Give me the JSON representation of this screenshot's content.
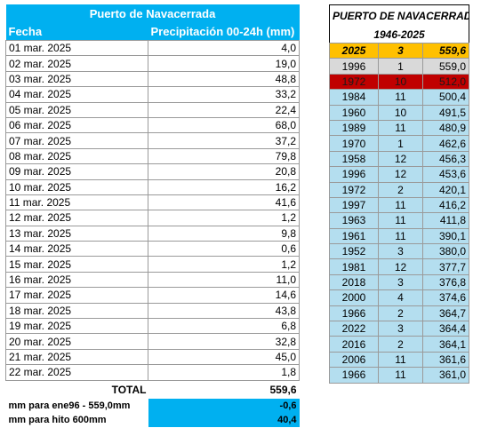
{
  "left": {
    "title": "Puerto de Navacerrada",
    "header": {
      "date": "Fecha",
      "precip": "Precipitación 00-24h (mm)"
    },
    "rows": [
      {
        "date": "01 mar. 2025",
        "value": "4,0"
      },
      {
        "date": "02 mar. 2025",
        "value": "19,0"
      },
      {
        "date": "03 mar. 2025",
        "value": "48,8"
      },
      {
        "date": "04 mar. 2025",
        "value": "33,2"
      },
      {
        "date": "05 mar. 2025",
        "value": "22,4"
      },
      {
        "date": "06 mar. 2025",
        "value": "68,0"
      },
      {
        "date": "07 mar. 2025",
        "value": "37,2"
      },
      {
        "date": "08 mar. 2025",
        "value": "79,8"
      },
      {
        "date": "09 mar. 2025",
        "value": "20,8"
      },
      {
        "date": "10 mar. 2025",
        "value": "16,2"
      },
      {
        "date": "11 mar. 2025",
        "value": "41,6"
      },
      {
        "date": "12 mar. 2025",
        "value": "1,2"
      },
      {
        "date": "13 mar. 2025",
        "value": "9,8"
      },
      {
        "date": "14 mar. 2025",
        "value": "0,6"
      },
      {
        "date": "15 mar. 2025",
        "value": "1,2"
      },
      {
        "date": "16 mar. 2025",
        "value": "11,0"
      },
      {
        "date": "17 mar. 2025",
        "value": "14,6"
      },
      {
        "date": "18 mar. 2025",
        "value": "43,8"
      },
      {
        "date": "19 mar. 2025",
        "value": "6,8"
      },
      {
        "date": "20 mar. 2025",
        "value": "32,8"
      },
      {
        "date": "21 mar. 2025",
        "value": "45,0"
      },
      {
        "date": "22 mar. 2025",
        "value": "1,8"
      }
    ],
    "total": {
      "label": "TOTAL",
      "value": "559,6"
    },
    "summary": [
      {
        "label": "mm para ene96 - 559,0mm",
        "value": "-0,6"
      },
      {
        "label": "mm para hito 600mm",
        "value": "40,4"
      }
    ]
  },
  "right": {
    "title": "PUERTO DE NAVACERRADA",
    "subtitle": "1946-2025",
    "current": {
      "year": "2025",
      "month": "3",
      "value": "559,6"
    },
    "rows": [
      {
        "year": "1996",
        "month": "1",
        "value": "559,0",
        "style": "grey"
      },
      {
        "year": "1972",
        "month": "10",
        "value": "512,0",
        "style": "red"
      },
      {
        "year": "1984",
        "month": "11",
        "value": "500,4",
        "style": ""
      },
      {
        "year": "1960",
        "month": "10",
        "value": "491,5",
        "style": ""
      },
      {
        "year": "1989",
        "month": "11",
        "value": "480,9",
        "style": ""
      },
      {
        "year": "1970",
        "month": "1",
        "value": "462,6",
        "style": ""
      },
      {
        "year": "1958",
        "month": "12",
        "value": "456,3",
        "style": ""
      },
      {
        "year": "1996",
        "month": "12",
        "value": "453,6",
        "style": ""
      },
      {
        "year": "1972",
        "month": "2",
        "value": "420,1",
        "style": ""
      },
      {
        "year": "1997",
        "month": "11",
        "value": "416,2",
        "style": ""
      },
      {
        "year": "1963",
        "month": "11",
        "value": "411,8",
        "style": ""
      },
      {
        "year": "1961",
        "month": "11",
        "value": "390,1",
        "style": ""
      },
      {
        "year": "1952",
        "month": "3",
        "value": "380,0",
        "style": ""
      },
      {
        "year": "1981",
        "month": "12",
        "value": "377,7",
        "style": ""
      },
      {
        "year": "2018",
        "month": "3",
        "value": "376,8",
        "style": ""
      },
      {
        "year": "2000",
        "month": "4",
        "value": "374,6",
        "style": ""
      },
      {
        "year": "1966",
        "month": "2",
        "value": "364,7",
        "style": ""
      },
      {
        "year": "2022",
        "month": "3",
        "value": "364,4",
        "style": ""
      },
      {
        "year": "2016",
        "month": "2",
        "value": "364,1",
        "style": ""
      },
      {
        "year": "2006",
        "month": "11",
        "value": "361,6",
        "style": ""
      },
      {
        "year": "1966",
        "month": "11",
        "value": "361,0",
        "style": ""
      }
    ]
  }
}
